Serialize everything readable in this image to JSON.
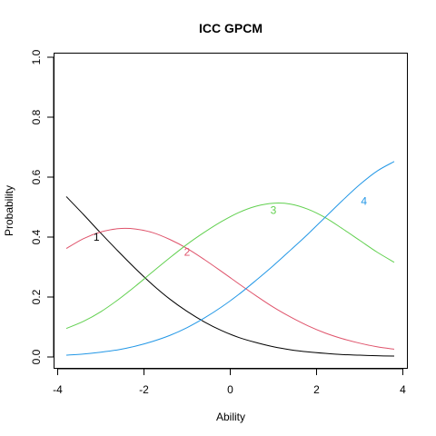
{
  "chart_data": {
    "type": "line",
    "title": "ICC GPCM",
    "xlabel": "Ability",
    "ylabel": "Probability",
    "xlim": [
      -4,
      4
    ],
    "ylim": [
      0,
      1.0
    ],
    "x_ticks": [
      "-4",
      "-2",
      "0",
      "2",
      "4"
    ],
    "y_ticks": [
      "0.0",
      "0.2",
      "0.4",
      "0.6",
      "0.8",
      "1.0"
    ],
    "x": [
      -3.8,
      -3.4,
      -3.0,
      -2.6,
      -2.2,
      -1.8,
      -1.4,
      -1.0,
      -0.6,
      -0.2,
      0.2,
      0.6,
      1.0,
      1.4,
      1.8,
      2.2,
      2.6,
      3.0,
      3.4,
      3.8
    ],
    "series": [
      {
        "name": "1",
        "color": "#000000",
        "values": [
          0.535,
          0.475,
          0.413,
          0.353,
          0.295,
          0.241,
          0.193,
          0.152,
          0.117,
          0.088,
          0.065,
          0.048,
          0.034,
          0.024,
          0.017,
          0.012,
          0.008,
          0.006,
          0.004,
          0.003
        ],
        "label_at": [
          -3.1,
          0.4
        ]
      },
      {
        "name": "2",
        "color": "#DF536B",
        "values": [
          0.362,
          0.395,
          0.417,
          0.428,
          0.427,
          0.415,
          0.392,
          0.362,
          0.325,
          0.285,
          0.244,
          0.204,
          0.166,
          0.133,
          0.104,
          0.08,
          0.061,
          0.046,
          0.034,
          0.026
        ],
        "label_at": [
          -1.0,
          0.35
        ]
      },
      {
        "name": "3",
        "color": "#61D04F",
        "values": [
          0.095,
          0.119,
          0.151,
          0.191,
          0.236,
          0.284,
          0.331,
          0.376,
          0.416,
          0.452,
          0.482,
          0.503,
          0.513,
          0.51,
          0.493,
          0.465,
          0.428,
          0.389,
          0.35,
          0.316
        ],
        "label_at": [
          1.0,
          0.49
        ]
      },
      {
        "name": "4",
        "color": "#2297E6",
        "values": [
          0.006,
          0.01,
          0.016,
          0.024,
          0.036,
          0.052,
          0.072,
          0.098,
          0.13,
          0.167,
          0.209,
          0.256,
          0.305,
          0.357,
          0.41,
          0.466,
          0.522,
          0.575,
          0.62,
          0.652
        ],
        "label_at": [
          3.1,
          0.52
        ]
      }
    ]
  }
}
